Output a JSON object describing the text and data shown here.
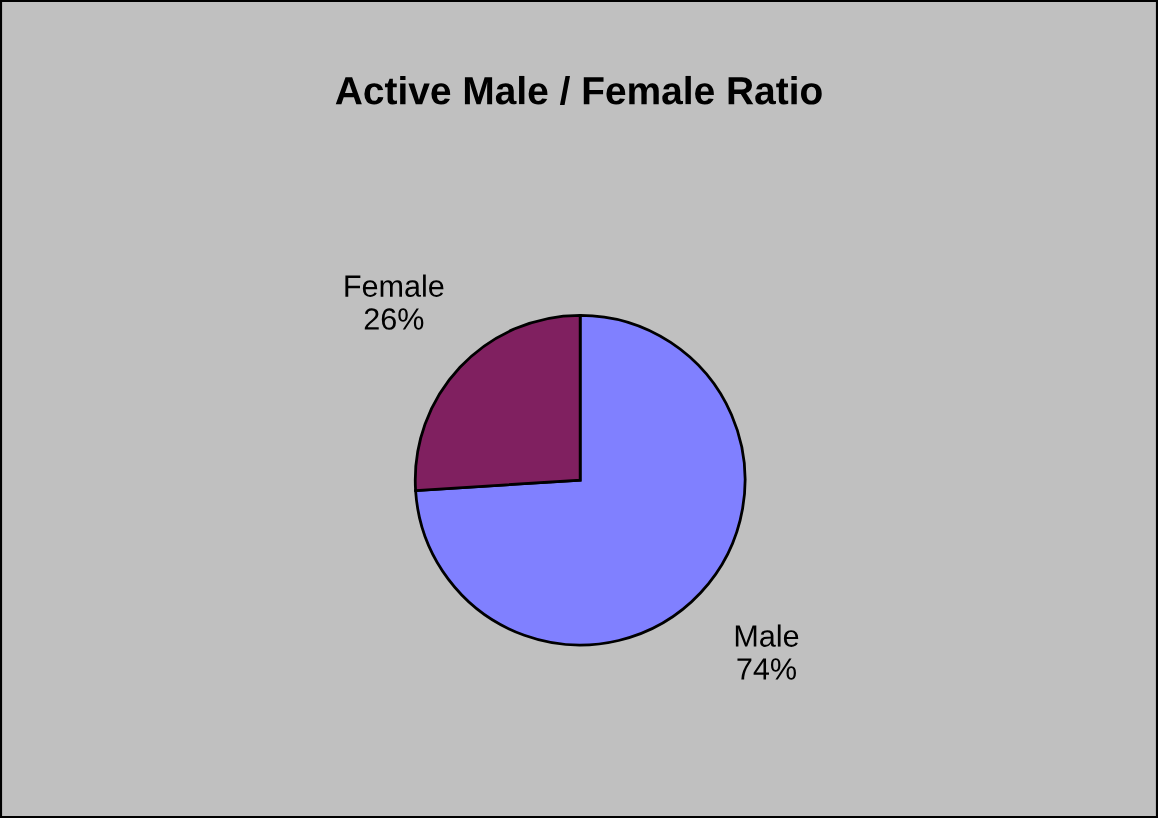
{
  "chart_data": {
    "type": "pie",
    "title": "Active Male / Female Ratio",
    "categories": [
      "Male",
      "Female"
    ],
    "values": [
      74,
      26
    ],
    "value_labels": [
      "74%",
      "26%"
    ],
    "colors": [
      "#8080ff",
      "#802060"
    ],
    "legend": false
  }
}
